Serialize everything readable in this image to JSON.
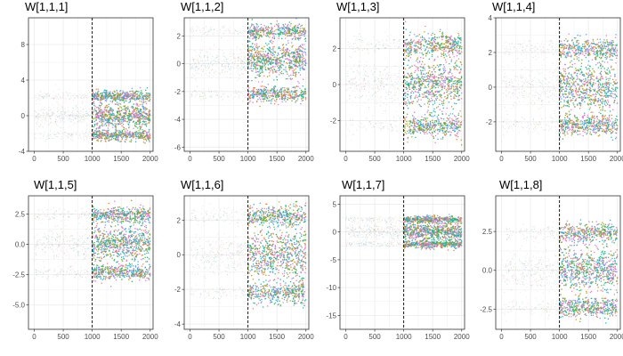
{
  "palette": [
    "#F8766D",
    "#E58700",
    "#C99800",
    "#A3A500",
    "#6BB100",
    "#00BA38",
    "#00BF7D",
    "#00C0AF",
    "#00BCD8",
    "#00B0F6",
    "#619CFF",
    "#B983FF",
    "#E76BF3",
    "#FD61D1",
    "#FF67A4"
  ],
  "colors": {
    "grid": "#ebebeb",
    "panel_border": "#333333",
    "burnin_points": "#bbbbbb",
    "vline": "#000000"
  },
  "chart_data": [
    {
      "type": "scatter",
      "title": "W[1,1,1]",
      "xlim": [
        -100,
        2050
      ],
      "ylim": [
        -4,
        11
      ],
      "xticks": [
        0,
        500,
        1000,
        1500,
        2000
      ],
      "xtick_labels": [
        "0",
        "500",
        "1000",
        "1500",
        "2000"
      ],
      "yticks": [
        -4,
        0,
        4,
        8
      ],
      "ytick_labels": [
        "-4",
        "0",
        "4",
        "8"
      ],
      "vline_x": 1000,
      "modes": [
        2.2,
        0,
        -2.2
      ],
      "spread": 0.45
    },
    {
      "type": "scatter",
      "title": "W[1,1,2]",
      "xlim": [
        -100,
        2050
      ],
      "ylim": [
        -6.3,
        3.3
      ],
      "xticks": [
        0,
        500,
        1000,
        1500,
        2000
      ],
      "xtick_labels": [
        "0",
        "500",
        "1000",
        "1500",
        "2000"
      ],
      "yticks": [
        -6,
        -4,
        -2,
        0,
        2
      ],
      "ytick_labels": [
        "-6",
        "-4",
        "-2",
        "0",
        "2"
      ],
      "vline_x": 1000,
      "modes": [
        2.3,
        0.3,
        -2.2
      ],
      "spread": 0.4
    },
    {
      "type": "scatter",
      "title": "W[1,1,3]",
      "xlim": [
        -100,
        2050
      ],
      "ylim": [
        -3.7,
        3.7
      ],
      "xticks": [
        0,
        500,
        1000,
        1500,
        2000
      ],
      "xtick_labels": [
        "0",
        "500",
        "1000",
        "1500",
        "2000"
      ],
      "yticks": [
        -2,
        0,
        2
      ],
      "ytick_labels": [
        "-2",
        "0",
        "2"
      ],
      "vline_x": 1000,
      "modes": [
        2.2,
        0,
        -2.3
      ],
      "spread": 0.45
    },
    {
      "type": "scatter",
      "title": "W[1,1,4]",
      "xlim": [
        -100,
        2050
      ],
      "ylim": [
        -3.7,
        4.0
      ],
      "xticks": [
        0,
        500,
        1000,
        1500,
        2000
      ],
      "xtick_labels": [
        "0",
        "500",
        "1000",
        "1500",
        "2000"
      ],
      "yticks": [
        -2,
        0,
        2,
        4
      ],
      "ytick_labels": [
        "-2",
        "0",
        "2",
        "4"
      ],
      "vline_x": 1000,
      "modes": [
        2.2,
        0,
        -2.2
      ],
      "spread": 0.45
    },
    {
      "type": "scatter",
      "title": "W[1,1,5]",
      "xlim": [
        -100,
        2050
      ],
      "ylim": [
        -7.0,
        4.0
      ],
      "xticks": [
        0,
        500,
        1000,
        1500,
        2000
      ],
      "xtick_labels": [
        "0",
        "500",
        "1000",
        "1500",
        "2000"
      ],
      "yticks": [
        -5,
        -2.5,
        0,
        2.5
      ],
      "ytick_labels": [
        "-5.0",
        "-2.5",
        "0.0",
        "2.5"
      ],
      "vline_x": 1000,
      "modes": [
        2.4,
        0,
        -2.3
      ],
      "spread": 0.45
    },
    {
      "type": "scatter",
      "title": "W[1,1,6]",
      "xlim": [
        -100,
        2050
      ],
      "ylim": [
        -4.3,
        3.4
      ],
      "xticks": [
        0,
        500,
        1000,
        1500,
        2000
      ],
      "xtick_labels": [
        "0",
        "500",
        "1000",
        "1500",
        "2000"
      ],
      "yticks": [
        -4,
        -2,
        0,
        2
      ],
      "ytick_labels": [
        "-4",
        "-2",
        "0",
        "2"
      ],
      "vline_x": 1000,
      "modes": [
        2.2,
        0,
        -2.2
      ],
      "spread": 0.45
    },
    {
      "type": "scatter",
      "title": "W[1,1,7]",
      "xlim": [
        -100,
        2050
      ],
      "ylim": [
        -17.5,
        6.5
      ],
      "xticks": [
        0,
        500,
        1000,
        1500,
        2000
      ],
      "xtick_labels": [
        "0",
        "500",
        "1000",
        "1500",
        "2000"
      ],
      "yticks": [
        -15,
        -10,
        -5,
        0,
        5
      ],
      "ytick_labels": [
        "-15",
        "-10",
        "-5",
        "0",
        "5"
      ],
      "vline_x": 1000,
      "modes": [
        2.2,
        0,
        -2.2
      ],
      "spread": 0.5
    },
    {
      "type": "scatter",
      "title": "W[1,1,8]",
      "xlim": [
        -100,
        2050
      ],
      "ylim": [
        -3.8,
        4.8
      ],
      "xticks": [
        0,
        500,
        1000,
        1500,
        2000
      ],
      "xtick_labels": [
        "0",
        "500",
        "1000",
        "1500",
        "2000"
      ],
      "yticks": [
        -2.5,
        0,
        2.5
      ],
      "ytick_labels": [
        "-2.5",
        "0.0",
        "2.5"
      ],
      "vline_x": 1000,
      "modes": [
        2.4,
        0,
        -2.4
      ],
      "spread": 0.45
    }
  ]
}
